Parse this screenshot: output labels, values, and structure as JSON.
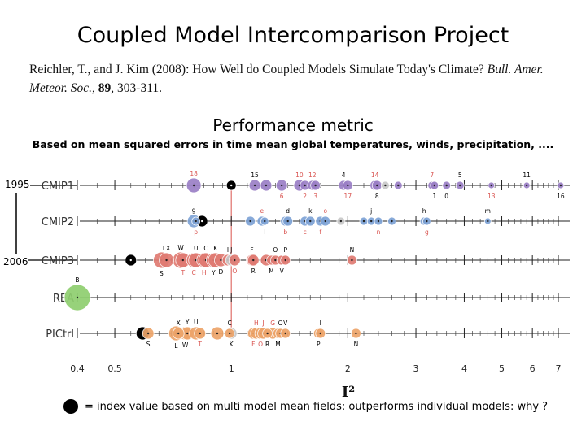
{
  "slide": {
    "title": "Coupled Model Intercomparison Project",
    "reference": {
      "text": "Reichler, T., and J. Kim (2008): How Well do Coupled Models Simulate Today's Climate?",
      "journal": "Bull. Amer. Meteor. Soc.",
      "volume": "89",
      "pages": ", 303-311."
    },
    "section_title": "Performance metric",
    "section_subtitle": "Based on mean squared errors in time mean global temperatures, winds, precipitation, ....",
    "year_start": "1995",
    "year_end": "2006",
    "footnote": "= index value based on multi model mean fields: outperforms individual models: why ?"
  },
  "chart_data": {
    "type": "scatter",
    "xlabel": "I²",
    "xscale": "log",
    "xlim": [
      0.4,
      7
    ],
    "xticks": [
      0.4,
      0.5,
      1,
      2,
      3,
      4,
      5,
      6,
      7
    ],
    "reference_line_x": 1,
    "rows": [
      {
        "name": "CMIP1",
        "color": "#9b7fc6",
        "points": [
          {
            "x": 0.8,
            "label": "18",
            "pos": "top",
            "lc": "#d9534f",
            "size": 9
          },
          {
            "x": 1.0,
            "label": "",
            "pos": "none",
            "lc": "#000",
            "size": 6,
            "mmm": true
          },
          {
            "x": 1.15,
            "label": "15",
            "pos": "top",
            "lc": "#000",
            "size": 7
          },
          {
            "x": 1.23,
            "label": "",
            "pos": "none",
            "lc": "#000",
            "size": 7
          },
          {
            "x": 1.35,
            "label": "6",
            "pos": "bottom",
            "lc": "#d9534f",
            "size": 7
          },
          {
            "x": 1.5,
            "label": "10",
            "pos": "top",
            "lc": "#d9534f",
            "size": 7
          },
          {
            "x": 1.55,
            "label": "2",
            "pos": "bottom",
            "lc": "#d9534f",
            "size": 6
          },
          {
            "x": 1.62,
            "label": "12",
            "pos": "top",
            "lc": "#d9534f",
            "size": 6
          },
          {
            "x": 1.65,
            "label": "3",
            "pos": "bottom",
            "lc": "#d9534f",
            "size": 6
          },
          {
            "x": 1.95,
            "label": "4",
            "pos": "top",
            "lc": "#000",
            "size": 6
          },
          {
            "x": 2.0,
            "label": "17",
            "pos": "bottom",
            "lc": "#d9534f",
            "size": 6
          },
          {
            "x": 2.35,
            "label": "14",
            "pos": "top",
            "lc": "#d9534f",
            "size": 6
          },
          {
            "x": 2.38,
            "label": "8",
            "pos": "bottom",
            "lc": "#000",
            "size": 6
          },
          {
            "x": 2.5,
            "label": "",
            "pos": "none",
            "lc": "#000",
            "size": 5,
            "grey": true
          },
          {
            "x": 2.7,
            "label": "",
            "pos": "none",
            "lc": "#000",
            "size": 5
          },
          {
            "x": 3.3,
            "label": "7",
            "pos": "top",
            "lc": "#d9534f",
            "size": 5
          },
          {
            "x": 3.35,
            "label": "1",
            "pos": "bottom",
            "lc": "#000",
            "size": 5
          },
          {
            "x": 3.6,
            "label": "0",
            "pos": "bottom",
            "lc": "#000",
            "size": 5
          },
          {
            "x": 3.9,
            "label": "5",
            "pos": "top",
            "lc": "#000",
            "size": 5
          },
          {
            "x": 4.7,
            "label": "13",
            "pos": "bottom",
            "lc": "#d9534f",
            "size": 4
          },
          {
            "x": 5.8,
            "label": "11",
            "pos": "top",
            "lc": "#000",
            "size": 4
          },
          {
            "x": 7.1,
            "label": "16",
            "pos": "bottom",
            "lc": "#000",
            "size": 4
          }
        ]
      },
      {
        "name": "CMIP2",
        "color": "#7ea3d6",
        "points": [
          {
            "x": 0.8,
            "label": "g",
            "pos": "top",
            "lc": "#000",
            "size": 8
          },
          {
            "x": 0.81,
            "label": "p",
            "pos": "bottom",
            "lc": "#d9534f",
            "size": 5
          },
          {
            "x": 0.84,
            "label": "",
            "pos": "none",
            "lc": "#000",
            "size": 7,
            "mmm": true
          },
          {
            "x": 1.12,
            "label": "",
            "pos": "none",
            "lc": "#000",
            "size": 6
          },
          {
            "x": 1.2,
            "label": "e",
            "pos": "top",
            "lc": "#d9534f",
            "size": 6
          },
          {
            "x": 1.22,
            "label": "l",
            "pos": "bottom",
            "lc": "#000",
            "size": 5
          },
          {
            "x": 1.38,
            "label": "b",
            "pos": "bottom",
            "lc": "#d9534f",
            "size": 6
          },
          {
            "x": 1.4,
            "label": "d",
            "pos": "top",
            "lc": "#000",
            "size": 6
          },
          {
            "x": 1.55,
            "label": "c",
            "pos": "bottom",
            "lc": "#d9534f",
            "size": 6
          },
          {
            "x": 1.6,
            "label": "k",
            "pos": "top",
            "lc": "#000",
            "size": 6
          },
          {
            "x": 1.7,
            "label": "f",
            "pos": "bottom",
            "lc": "#d9534f",
            "size": 6
          },
          {
            "x": 1.75,
            "label": "o",
            "pos": "top",
            "lc": "#d9534f",
            "size": 6
          },
          {
            "x": 1.92,
            "label": "",
            "pos": "none",
            "lc": "#000",
            "size": 5,
            "grey": true
          },
          {
            "x": 2.2,
            "label": "",
            "pos": "none",
            "lc": "#000",
            "size": 5
          },
          {
            "x": 2.3,
            "label": "j",
            "pos": "top",
            "lc": "#000",
            "size": 5
          },
          {
            "x": 2.4,
            "label": "n",
            "pos": "bottom",
            "lc": "#d9534f",
            "size": 5
          },
          {
            "x": 2.6,
            "label": "",
            "pos": "none",
            "lc": "#000",
            "size": 5
          },
          {
            "x": 3.15,
            "label": "h",
            "pos": "top",
            "lc": "#000",
            "size": 5
          },
          {
            "x": 3.2,
            "label": "g",
            "pos": "bottom",
            "lc": "#d9534f",
            "size": 5
          },
          {
            "x": 4.6,
            "label": "m",
            "pos": "top",
            "lc": "#000",
            "size": 4
          }
        ]
      },
      {
        "name": "CMIP3",
        "color": "#e07b73",
        "points": [
          {
            "x": 0.55,
            "label": "",
            "pos": "none",
            "lc": "#000",
            "size": 7,
            "mmm": true
          },
          {
            "x": 0.66,
            "label": "S",
            "pos": "bottom",
            "lc": "#000",
            "size": 10
          },
          {
            "x": 0.68,
            "label": "LX",
            "pos": "top",
            "lc": "#000",
            "size": 9
          },
          {
            "x": 0.74,
            "label": "W",
            "pos": "top",
            "lc": "#000",
            "size": 10
          },
          {
            "x": 0.75,
            "label": "T",
            "pos": "bottom",
            "lc": "#d9534f",
            "size": 9
          },
          {
            "x": 0.8,
            "label": "C",
            "pos": "bottom",
            "lc": "#d9534f",
            "size": 9
          },
          {
            "x": 0.81,
            "label": "U",
            "pos": "top",
            "lc": "#000",
            "size": 9
          },
          {
            "x": 0.85,
            "label": "H",
            "pos": "bottom",
            "lc": "#d9534f",
            "size": 9
          },
          {
            "x": 0.86,
            "label": "C",
            "pos": "top",
            "lc": "#000",
            "size": 9
          },
          {
            "x": 0.9,
            "label": "Y",
            "pos": "bottom",
            "lc": "#000",
            "size": 9
          },
          {
            "x": 0.91,
            "label": "K",
            "pos": "top",
            "lc": "#000",
            "size": 9
          },
          {
            "x": 0.94,
            "label": "D",
            "pos": "bottom",
            "lc": "#000",
            "size": 8
          },
          {
            "x": 0.98,
            "label": "I",
            "pos": "top",
            "lc": "#000",
            "size": 7
          },
          {
            "x": 1.0,
            "label": "J",
            "pos": "top",
            "lc": "#000",
            "size": 7,
            "grey": true
          },
          {
            "x": 1.02,
            "label": "O",
            "pos": "bottom",
            "lc": "#d9534f",
            "size": 7
          },
          {
            "x": 1.13,
            "label": "F",
            "pos": "top",
            "lc": "#000",
            "size": 7
          },
          {
            "x": 1.14,
            "label": "R",
            "pos": "bottom",
            "lc": "#000",
            "size": 7
          },
          {
            "x": 1.23,
            "label": "",
            "pos": "none",
            "lc": "#000",
            "size": 7
          },
          {
            "x": 1.27,
            "label": "M",
            "pos": "bottom",
            "lc": "#000",
            "size": 6
          },
          {
            "x": 1.3,
            "label": "O",
            "pos": "top",
            "lc": "#000",
            "size": 6
          },
          {
            "x": 1.35,
            "label": "V",
            "pos": "bottom",
            "lc": "#000",
            "size": 6
          },
          {
            "x": 1.38,
            "label": "P",
            "pos": "top",
            "lc": "#000",
            "size": 6
          },
          {
            "x": 2.05,
            "label": "N",
            "pos": "top",
            "lc": "#000",
            "size": 6
          }
        ]
      },
      {
        "name": "REA",
        "color": "#8fcf6f",
        "points": [
          {
            "x": 0.4,
            "label": "B",
            "pos": "top",
            "lc": "#000",
            "size": 16
          }
        ]
      },
      {
        "name": "PICtrl",
        "color": "#eda46a",
        "points": [
          {
            "x": 0.59,
            "label": "",
            "pos": "none",
            "lc": "#000",
            "size": 8,
            "mmm": true
          },
          {
            "x": 0.61,
            "label": "S",
            "pos": "bottom",
            "lc": "#000",
            "size": 7
          },
          {
            "x": 0.72,
            "label": "L",
            "pos": "bottom",
            "lc": "#000",
            "size": 9
          },
          {
            "x": 0.73,
            "label": "X",
            "pos": "top",
            "lc": "#000",
            "size": 7
          },
          {
            "x": 0.76,
            "label": "W",
            "pos": "bottom",
            "lc": "#000",
            "size": 8
          },
          {
            "x": 0.77,
            "label": "Y",
            "pos": "top",
            "lc": "#000",
            "size": 8
          },
          {
            "x": 0.81,
            "label": "U",
            "pos": "top",
            "lc": "#000",
            "size": 8
          },
          {
            "x": 0.83,
            "label": "T",
            "pos": "bottom",
            "lc": "#d9534f",
            "size": 7
          },
          {
            "x": 0.92,
            "label": "",
            "pos": "none",
            "lc": "#000",
            "size": 8
          },
          {
            "x": 0.99,
            "label": "C",
            "pos": "top",
            "lc": "#000",
            "size": 6
          },
          {
            "x": 1.0,
            "label": "K",
            "pos": "bottom",
            "lc": "#000",
            "size": 7,
            "grey": true
          },
          {
            "x": 1.14,
            "label": "F",
            "pos": "bottom",
            "lc": "#d9534f",
            "size": 7
          },
          {
            "x": 1.16,
            "label": "H",
            "pos": "top",
            "lc": "#d9534f",
            "size": 7
          },
          {
            "x": 1.19,
            "label": "O",
            "pos": "bottom",
            "lc": "#d9534f",
            "size": 7
          },
          {
            "x": 1.21,
            "label": "J",
            "pos": "top",
            "lc": "#d9534f",
            "size": 7
          },
          {
            "x": 1.24,
            "label": "R",
            "pos": "bottom",
            "lc": "#000",
            "size": 6
          },
          {
            "x": 1.28,
            "label": "G",
            "pos": "top",
            "lc": "#d9534f",
            "size": 7
          },
          {
            "x": 1.32,
            "label": "M",
            "pos": "bottom",
            "lc": "#000",
            "size": 6
          },
          {
            "x": 1.34,
            "label": "O",
            "pos": "top",
            "lc": "#000",
            "size": 6
          },
          {
            "x": 1.38,
            "label": "V",
            "pos": "top",
            "lc": "#000",
            "size": 6
          },
          {
            "x": 1.68,
            "label": "P",
            "pos": "bottom",
            "lc": "#000",
            "size": 6
          },
          {
            "x": 1.7,
            "label": "I",
            "pos": "top",
            "lc": "#000",
            "size": 6
          },
          {
            "x": 2.1,
            "label": "N",
            "pos": "bottom",
            "lc": "#000",
            "size": 6
          }
        ]
      }
    ]
  }
}
